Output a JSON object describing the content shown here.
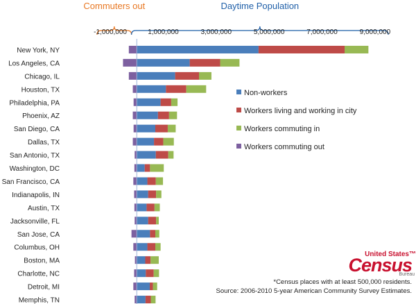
{
  "chart_data": {
    "type": "bar",
    "orientation": "horizontal-stacked",
    "brackets": [
      {
        "label": "Commuters out",
        "range": [
          -1500000,
          -200000
        ],
        "color": "#e87722"
      },
      {
        "label": "Daytime Population",
        "range": [
          -200000,
          9500000
        ],
        "color": "#1f5fa8"
      }
    ],
    "xlim": [
      -1500000,
      9500000
    ],
    "xticks": [
      {
        "value": -1000000,
        "label": "-1,000,000"
      },
      {
        "value": 1000000,
        "label": "1,000,000"
      },
      {
        "value": 3000000,
        "label": "3,000,000"
      },
      {
        "value": 5000000,
        "label": "5,000,000"
      },
      {
        "value": 7000000,
        "label": "7,000,000"
      },
      {
        "value": 9000000,
        "label": "9,000,000"
      }
    ],
    "categories": [
      "New York, NY",
      "Los Angeles, CA",
      "Chicago, IL",
      "Houston, TX",
      "Philadelphia, PA",
      "Phoenix, AZ",
      "San Diego, CA",
      "Dallas, TX",
      "San Antonio, TX",
      "Washington, DC",
      "San Francisco, CA",
      "Indianapolis, IN",
      "Austin, TX",
      "Jacksonville, FL",
      "San Jose, CA",
      "Columbus, OH",
      "Boston, MA",
      "Charlotte, NC",
      "Detroit, MI",
      "Memphis, TN"
    ],
    "series": [
      {
        "name": "Non-workers",
        "color": "#4a7ebb",
        "values": [
          4600000,
          2000000,
          1450000,
          1100000,
          900000,
          800000,
          700000,
          650000,
          720000,
          300000,
          400000,
          430000,
          370000,
          430000,
          500000,
          400000,
          320000,
          340000,
          490000,
          330000
        ]
      },
      {
        "name": "Workers living and working in city",
        "color": "#be4b48",
        "values": [
          3250000,
          1150000,
          900000,
          770000,
          400000,
          420000,
          470000,
          350000,
          470000,
          200000,
          320000,
          300000,
          300000,
          300000,
          200000,
          300000,
          200000,
          300000,
          120000,
          200000
        ]
      },
      {
        "name": "Workers commuting in",
        "color": "#98b954",
        "values": [
          900000,
          730000,
          470000,
          750000,
          240000,
          300000,
          300000,
          400000,
          200000,
          520000,
          270000,
          200000,
          200000,
          100000,
          150000,
          200000,
          310000,
          200000,
          160000,
          180000
        ]
      },
      {
        "name": "Workers commuting out",
        "color": "#7d60a0",
        "values": [
          -300000,
          -520000,
          -300000,
          -150000,
          -120000,
          -150000,
          -120000,
          -150000,
          -80000,
          -90000,
          -130000,
          -100000,
          -90000,
          -80000,
          -200000,
          -130000,
          -70000,
          -100000,
          -130000,
          -80000
        ]
      }
    ],
    "legend_position": "right"
  },
  "footnotes": {
    "line1": "*Census places with at least 500,000 residents.",
    "line2": "Source: 2006-2010 5-year American Community Survey Estimates."
  },
  "logo": {
    "top": "United States™",
    "main": "Census",
    "bottom": "Bureau",
    "color": "#c8102e"
  }
}
